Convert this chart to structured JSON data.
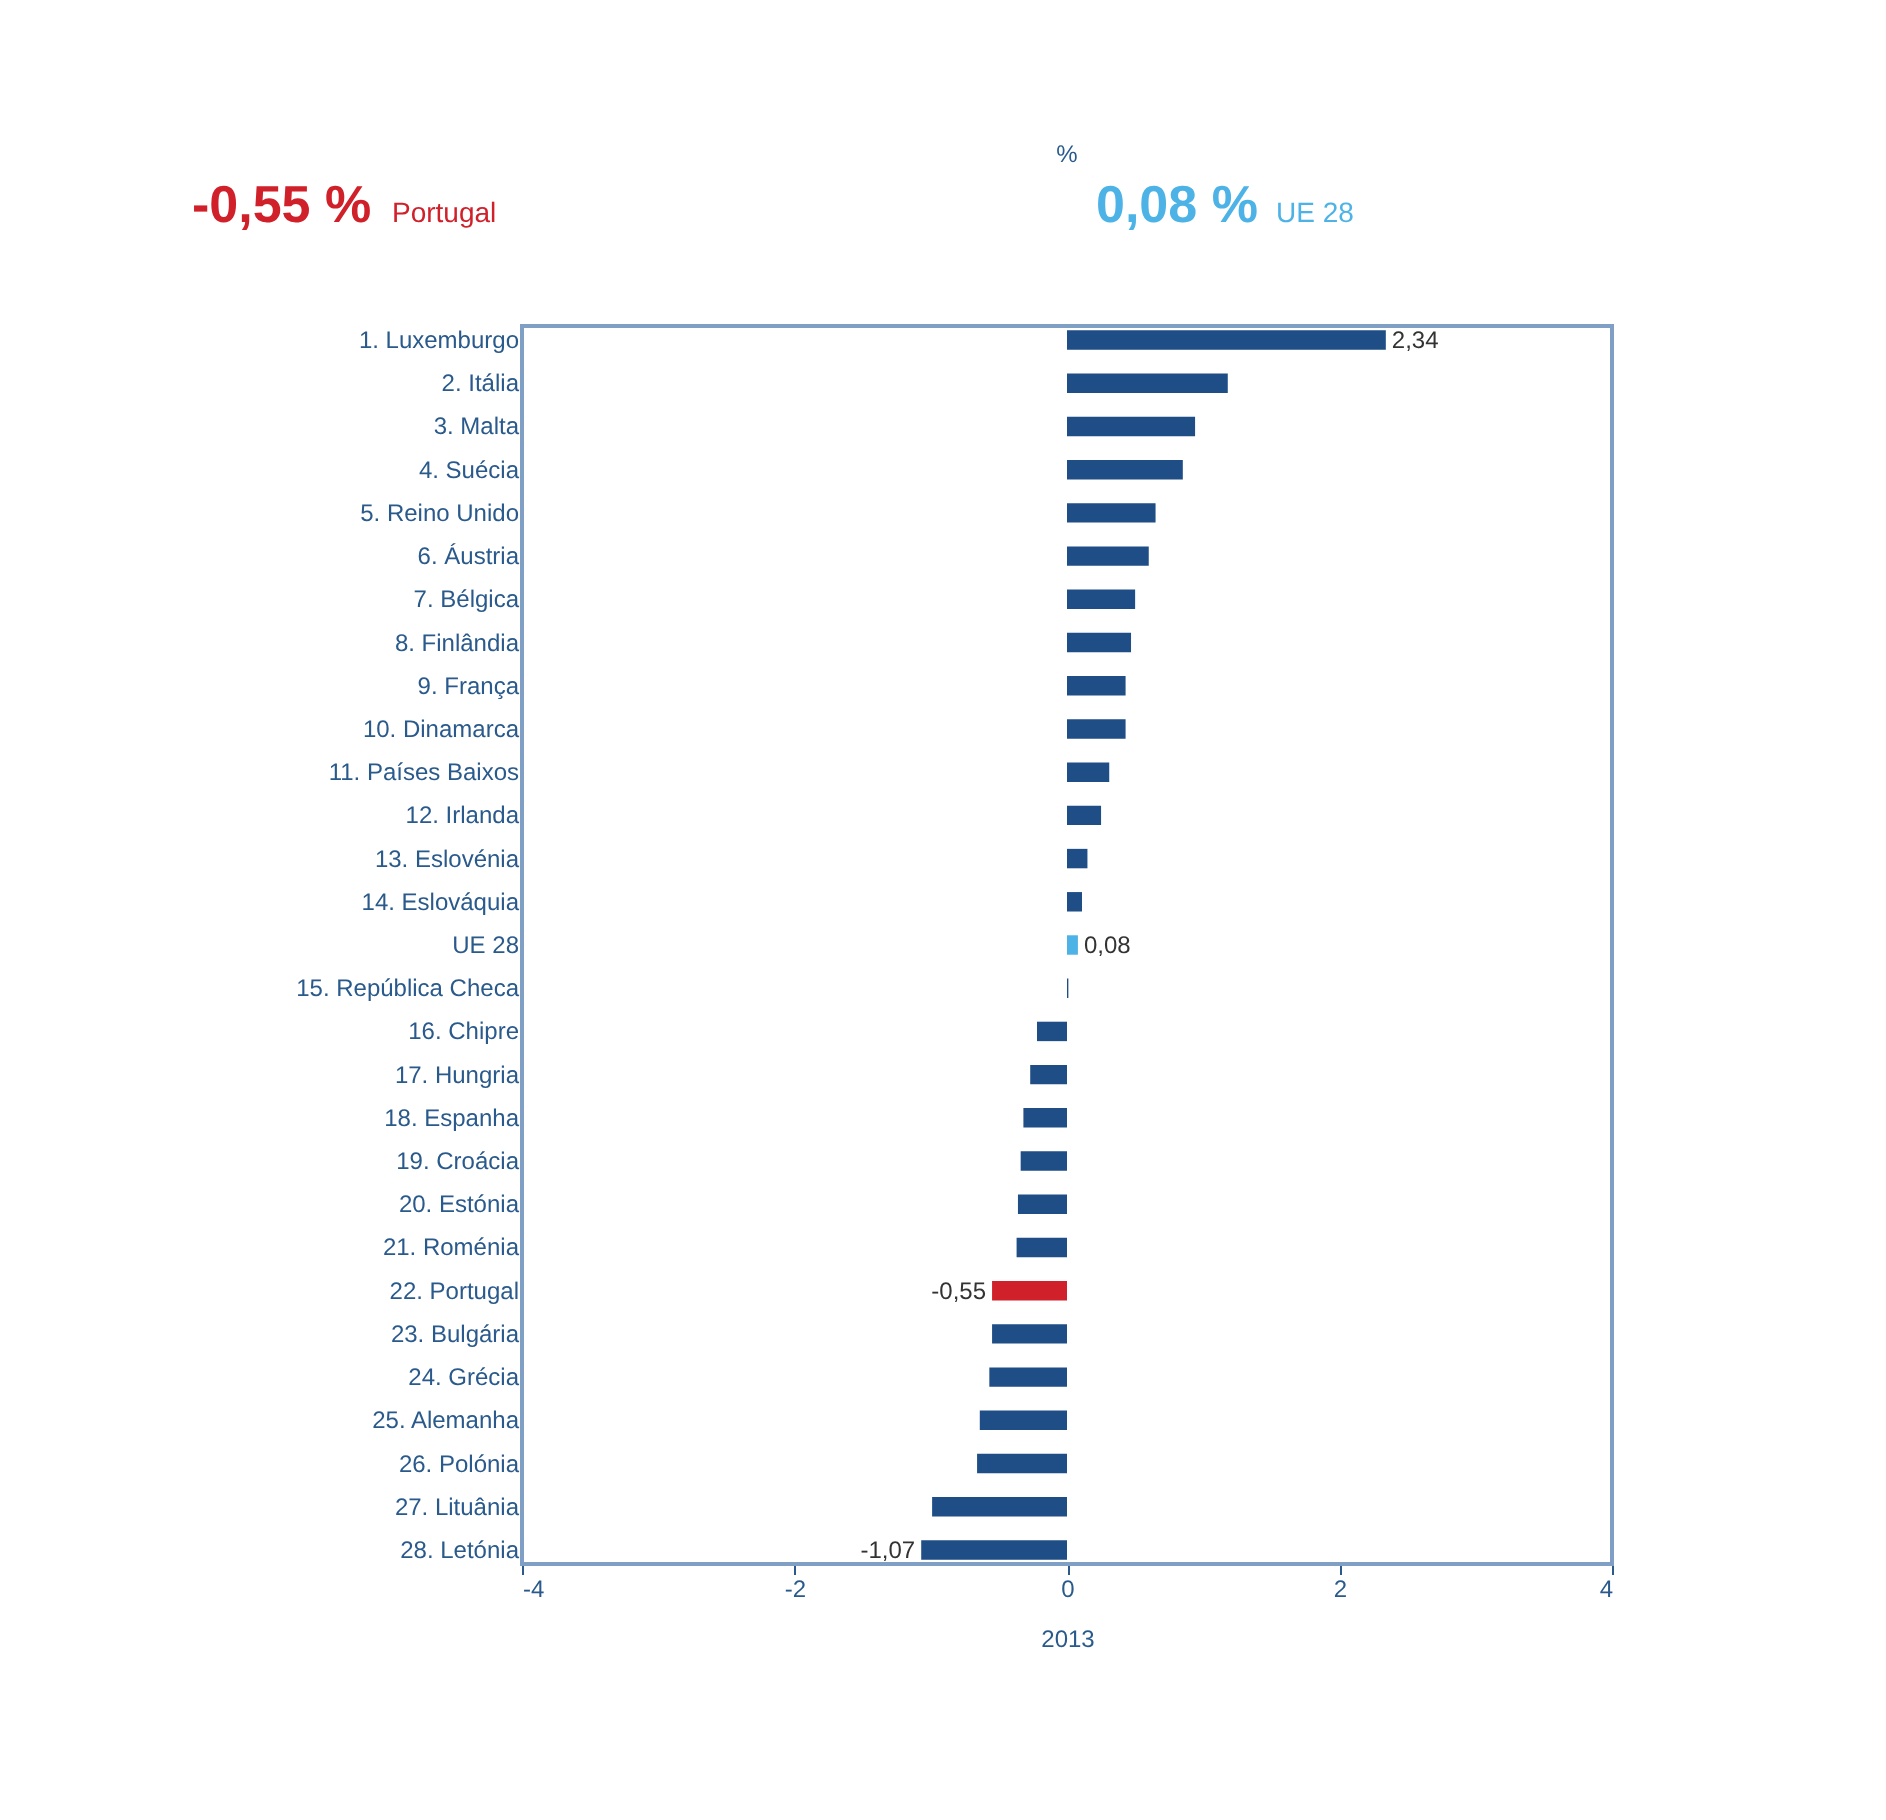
{
  "chart_data": {
    "type": "bar",
    "orientation": "horizontal",
    "title": "%",
    "xlabel": "2013",
    "annotations": [
      "-0,55 %",
      "Portugal",
      "0,08 %",
      "UE 28"
    ],
    "categories": [
      "1. Luxemburgo",
      "2. Itália",
      "3. Malta",
      "4. Suécia",
      "5. Reino Unido",
      "6. Áustria",
      "7. Bélgica",
      "8. Finlândia",
      "9. França",
      "10. Dinamarca",
      "11. Países Baixos",
      "12. Irlanda",
      "13. Eslovénia",
      "14. Eslováquia",
      "UE 28",
      "15. República Checa",
      "16. Chipre",
      "17. Hungria",
      "18. Espanha",
      "19. Croácia",
      "20. Estónia",
      "21. Roménia",
      "22. Portugal",
      "23. Bulgária",
      "24. Grécia",
      "25. Alemanha",
      "26. Polónia",
      "27. Lituânia",
      "28. Letónia"
    ],
    "values": [
      2.34,
      1.18,
      0.94,
      0.85,
      0.65,
      0.6,
      0.5,
      0.47,
      0.43,
      0.43,
      0.31,
      0.25,
      0.15,
      0.11,
      0.08,
      0.01,
      -0.22,
      -0.27,
      -0.32,
      -0.34,
      -0.36,
      -0.37,
      -0.55,
      -0.55,
      -0.57,
      -0.64,
      -0.66,
      -0.99,
      -1.07
    ],
    "colors": [
      "#1f4e86",
      "#1f4e86",
      "#1f4e86",
      "#1f4e86",
      "#1f4e86",
      "#1f4e86",
      "#1f4e86",
      "#1f4e86",
      "#1f4e86",
      "#1f4e86",
      "#1f4e86",
      "#1f4e86",
      "#1f4e86",
      "#1f4e86",
      "#4db3e6",
      "#1f4e86",
      "#1f4e86",
      "#1f4e86",
      "#1f4e86",
      "#1f4e86",
      "#1f4e86",
      "#1f4e86",
      "#d0202a",
      "#1f4e86",
      "#1f4e86",
      "#1f4e86",
      "#1f4e86",
      "#1f4e86",
      "#1f4e86"
    ],
    "value_labels": [
      "2,34",
      null,
      null,
      null,
      null,
      null,
      null,
      null,
      null,
      null,
      null,
      null,
      null,
      null,
      "0,08",
      null,
      null,
      null,
      null,
      null,
      null,
      null,
      "-0,55",
      null,
      null,
      null,
      null,
      null,
      "-1,07"
    ],
    "xlim": [
      -4,
      4
    ],
    "xticks": [
      -4,
      -2,
      0,
      2,
      4
    ],
    "grid": false
  }
}
